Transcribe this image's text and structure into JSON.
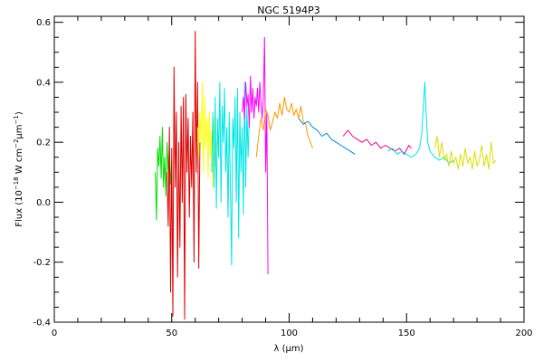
{
  "chart_data": {
    "type": "line",
    "title": "NGC 5194P3",
    "xlabel": "λ (μm)",
    "ylabel_main": "Flux (10",
    "ylabel_exp1": "−18",
    "ylabel_mid": " W cm",
    "ylabel_exp2": "−2",
    "ylabel_unit": "μm",
    "ylabel_exp3": "−1",
    "ylabel_end": ")",
    "xlim": [
      0,
      200
    ],
    "ylim": [
      -0.4,
      0.62
    ],
    "xticks": [
      "0",
      "50",
      "100",
      "150",
      "200"
    ],
    "yticks": [
      "-0.4",
      "-0.2",
      "0.0",
      "0.2",
      "0.4",
      "0.6"
    ],
    "grid": false,
    "series": [
      {
        "color": "#00dd00",
        "x": [
          43.0,
          43.5,
          44.0,
          44.5,
          45.0,
          45.5,
          46.0,
          46.5,
          47.0,
          47.5,
          48.0,
          48.5,
          49.0,
          49.5,
          50.0
        ],
        "y": [
          0.1,
          -0.06,
          0.18,
          0.12,
          0.22,
          0.08,
          0.25,
          0.05,
          0.15,
          0.02,
          0.2,
          0.1,
          0.18,
          0.06,
          0.14
        ]
      },
      {
        "color": "#dd0000",
        "x": [
          48.0,
          48.5,
          49.0,
          49.5,
          50.0,
          50.5,
          51.0,
          51.5,
          52.0,
          52.5,
          53.0,
          53.5,
          54.0,
          54.5,
          55.0,
          55.5,
          56.0,
          56.5,
          57.0,
          57.5,
          58.0,
          58.5,
          59.0,
          59.5,
          60.0,
          60.5,
          61.0,
          61.5,
          62.0
        ],
        "y": [
          0.1,
          -0.08,
          0.25,
          -0.3,
          0.18,
          -0.38,
          0.45,
          0.05,
          0.3,
          -0.25,
          0.2,
          -0.15,
          0.32,
          0.0,
          0.35,
          -0.39,
          0.36,
          0.1,
          0.28,
          -0.05,
          0.22,
          0.05,
          0.3,
          -0.2,
          0.57,
          0.1,
          0.4,
          -0.22,
          0.2
        ]
      },
      {
        "color": "#ffff00",
        "x": [
          61.0,
          61.5,
          62.0,
          62.5,
          63.0,
          63.5,
          64.0,
          64.5,
          65.0,
          65.5,
          66.0,
          66.5,
          67.0,
          67.5,
          68.0,
          68.5,
          69.0
        ],
        "y": [
          0.25,
          0.15,
          0.3,
          0.2,
          0.4,
          0.1,
          0.35,
          0.18,
          0.28,
          0.08,
          0.3,
          0.15,
          0.24,
          0.05,
          0.28,
          0.12,
          0.2
        ]
      },
      {
        "color": "#00e5e5",
        "x": [
          67.0,
          67.5,
          68.0,
          68.5,
          69.0,
          69.5,
          70.0,
          70.5,
          71.0,
          71.5,
          72.0,
          72.5,
          73.0,
          73.5,
          74.0,
          74.5,
          75.0,
          75.5,
          76.0,
          76.5,
          77.0,
          77.5,
          78.0,
          78.5,
          79.0,
          79.5,
          80.0,
          80.5,
          81.0,
          81.5,
          82.0,
          82.5,
          83.0
        ],
        "y": [
          0.1,
          0.3,
          0.05,
          0.35,
          -0.02,
          0.28,
          0.15,
          0.4,
          0.0,
          0.32,
          0.2,
          0.38,
          0.1,
          0.25,
          -0.05,
          0.3,
          0.05,
          -0.21,
          0.28,
          0.18,
          0.35,
          0.0,
          0.38,
          -0.12,
          0.3,
          0.1,
          0.25,
          -0.04,
          0.4,
          0.05,
          0.32,
          0.15,
          0.28
        ]
      },
      {
        "color": "#ff00ff",
        "x": [
          80.0,
          80.5,
          81.0,
          81.5,
          82.0,
          82.5,
          83.0,
          83.5,
          84.0,
          84.5,
          85.0,
          85.5,
          86.0,
          86.5,
          87.0,
          87.5,
          88.0,
          88.5,
          89.0,
          89.5,
          90.0,
          90.5,
          91.0
        ],
        "y": [
          0.3,
          0.35,
          0.28,
          0.4,
          0.32,
          0.36,
          0.25,
          0.42,
          0.3,
          0.38,
          0.28,
          0.35,
          0.32,
          0.38,
          0.3,
          0.4,
          0.33,
          0.28,
          0.35,
          0.55,
          0.1,
          0.3,
          -0.24
        ]
      },
      {
        "color": "#ff9900",
        "x": [
          86.0,
          87.0,
          88.0,
          89.0,
          90.0,
          91.0,
          92.0,
          93.0,
          94.0,
          95.0,
          96.0,
          97.0,
          98.0,
          99.0,
          100.0,
          101.0,
          102.0,
          103.0,
          104.0,
          105.0,
          106.0,
          107.0,
          108.0,
          109.0,
          110.0
        ],
        "y": [
          0.15,
          0.22,
          0.28,
          0.24,
          0.31,
          0.29,
          0.24,
          0.27,
          0.3,
          0.28,
          0.33,
          0.29,
          0.35,
          0.31,
          0.3,
          0.33,
          0.29,
          0.31,
          0.28,
          0.32,
          0.27,
          0.26,
          0.22,
          0.2,
          0.18
        ]
      },
      {
        "color": "#0088dd",
        "x": [
          104.0,
          106.0,
          108.0,
          110.0,
          112.0,
          114.0,
          116.0,
          118.0,
          120.0,
          122.0,
          124.0,
          126.0,
          128.0
        ],
        "y": [
          0.28,
          0.26,
          0.27,
          0.25,
          0.24,
          0.22,
          0.23,
          0.21,
          0.2,
          0.19,
          0.18,
          0.17,
          0.16
        ]
      },
      {
        "color": "#ee0088",
        "x": [
          123.0,
          125.0,
          127.0,
          129.0,
          131.0,
          133.0,
          135.0,
          137.0,
          139.0,
          141.0,
          143.0,
          145.0,
          147.0,
          149.0,
          151.0,
          152.0
        ],
        "y": [
          0.22,
          0.24,
          0.22,
          0.21,
          0.2,
          0.21,
          0.19,
          0.2,
          0.18,
          0.19,
          0.18,
          0.17,
          0.18,
          0.16,
          0.19,
          0.18
        ]
      },
      {
        "color": "#00e5e5",
        "x": [
          142.0,
          144.0,
          146.0,
          148.0,
          150.0,
          152.0,
          154.0,
          155.5,
          156.5,
          157.2,
          157.8,
          158.3,
          159.0,
          160.0,
          162.0,
          164.0,
          166.0,
          168.0,
          170.0
        ],
        "y": [
          0.17,
          0.18,
          0.16,
          0.17,
          0.16,
          0.15,
          0.16,
          0.18,
          0.23,
          0.33,
          0.4,
          0.3,
          0.2,
          0.17,
          0.15,
          0.14,
          0.15,
          0.13,
          0.14
        ]
      },
      {
        "color": "#dddd00",
        "x": [
          162.0,
          163.0,
          164.0,
          165.0,
          166.0,
          167.0,
          168.0,
          169.0,
          170.0,
          171.0,
          172.0,
          173.0,
          174.0,
          175.0,
          176.0,
          177.0,
          178.0,
          179.0,
          180.0,
          181.0,
          182.0,
          183.0,
          184.0,
          185.0,
          186.0,
          187.0,
          188.0
        ],
        "y": [
          0.18,
          0.22,
          0.15,
          0.2,
          0.14,
          0.16,
          0.12,
          0.17,
          0.13,
          0.15,
          0.11,
          0.16,
          0.12,
          0.18,
          0.13,
          0.15,
          0.11,
          0.17,
          0.12,
          0.14,
          0.19,
          0.12,
          0.16,
          0.11,
          0.2,
          0.13,
          0.14
        ]
      }
    ]
  }
}
